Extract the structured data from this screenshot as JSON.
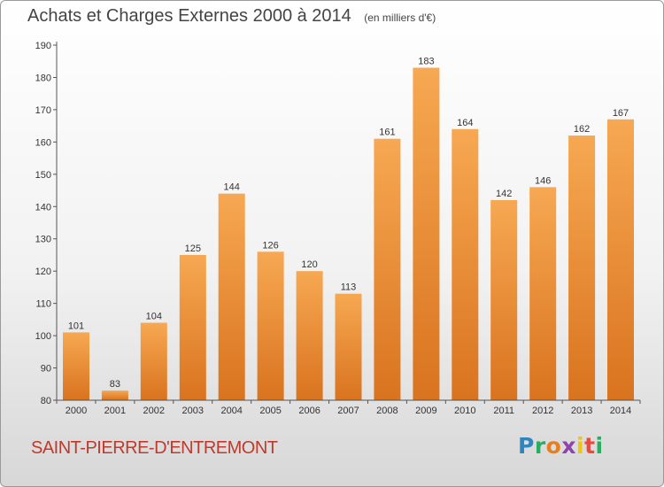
{
  "title": "Achats et Charges Externes 2000 à 2014",
  "subtitle": "(en milliers d'€)",
  "city": "SAINT-PIERRE-D'ENTREMONT",
  "logo_text": "Proxiti",
  "colors": {
    "bar_light": "#f7a852",
    "bar_dark": "#d9731f",
    "axis": "#555555",
    "city_text": "#c0392b"
  },
  "chart_data": {
    "type": "bar",
    "title": "Achats et Charges Externes 2000 à 2014",
    "categories": [
      "2000",
      "2001",
      "2002",
      "2003",
      "2004",
      "2005",
      "2006",
      "2007",
      "2008",
      "2009",
      "2010",
      "2011",
      "2012",
      "2013",
      "2014"
    ],
    "values": [
      101,
      83,
      104,
      125,
      144,
      126,
      120,
      113,
      161,
      183,
      164,
      142,
      146,
      162,
      167
    ],
    "ylim": [
      80,
      190
    ],
    "yticks": [
      80,
      90,
      100,
      110,
      120,
      130,
      140,
      150,
      160,
      170,
      180,
      190
    ],
    "xlabel": "",
    "ylabel": "",
    "grid": false
  }
}
